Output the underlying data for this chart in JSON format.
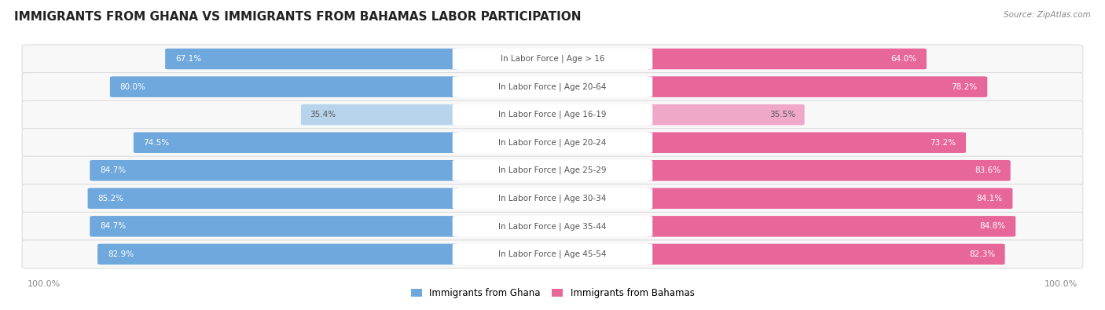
{
  "title": "IMMIGRANTS FROM GHANA VS IMMIGRANTS FROM BAHAMAS LABOR PARTICIPATION",
  "source": "Source: ZipAtlas.com",
  "categories": [
    "In Labor Force | Age > 16",
    "In Labor Force | Age 20-64",
    "In Labor Force | Age 16-19",
    "In Labor Force | Age 20-24",
    "In Labor Force | Age 25-29",
    "In Labor Force | Age 30-34",
    "In Labor Force | Age 35-44",
    "In Labor Force | Age 45-54"
  ],
  "ghana_values": [
    67.1,
    80.0,
    35.4,
    74.5,
    84.7,
    85.2,
    84.7,
    82.9
  ],
  "bahamas_values": [
    64.0,
    78.2,
    35.5,
    73.2,
    83.6,
    84.1,
    84.8,
    82.3
  ],
  "ghana_color": "#6fa8dc",
  "bahamas_color": "#e8679a",
  "ghana_color_light": "#b8d4ed",
  "bahamas_color_light": "#f0a8c8",
  "row_bg_color": "#eeeeee",
  "row_bg_inner": "#f8f8f8",
  "center_label_color": "#555555",
  "max_value": 100.0,
  "legend_ghana": "Immigrants from Ghana",
  "legend_bahamas": "Immigrants from Bahamas",
  "title_fontsize": 11,
  "label_fontsize": 7.5,
  "value_fontsize": 7.5,
  "axis_fontsize": 8
}
